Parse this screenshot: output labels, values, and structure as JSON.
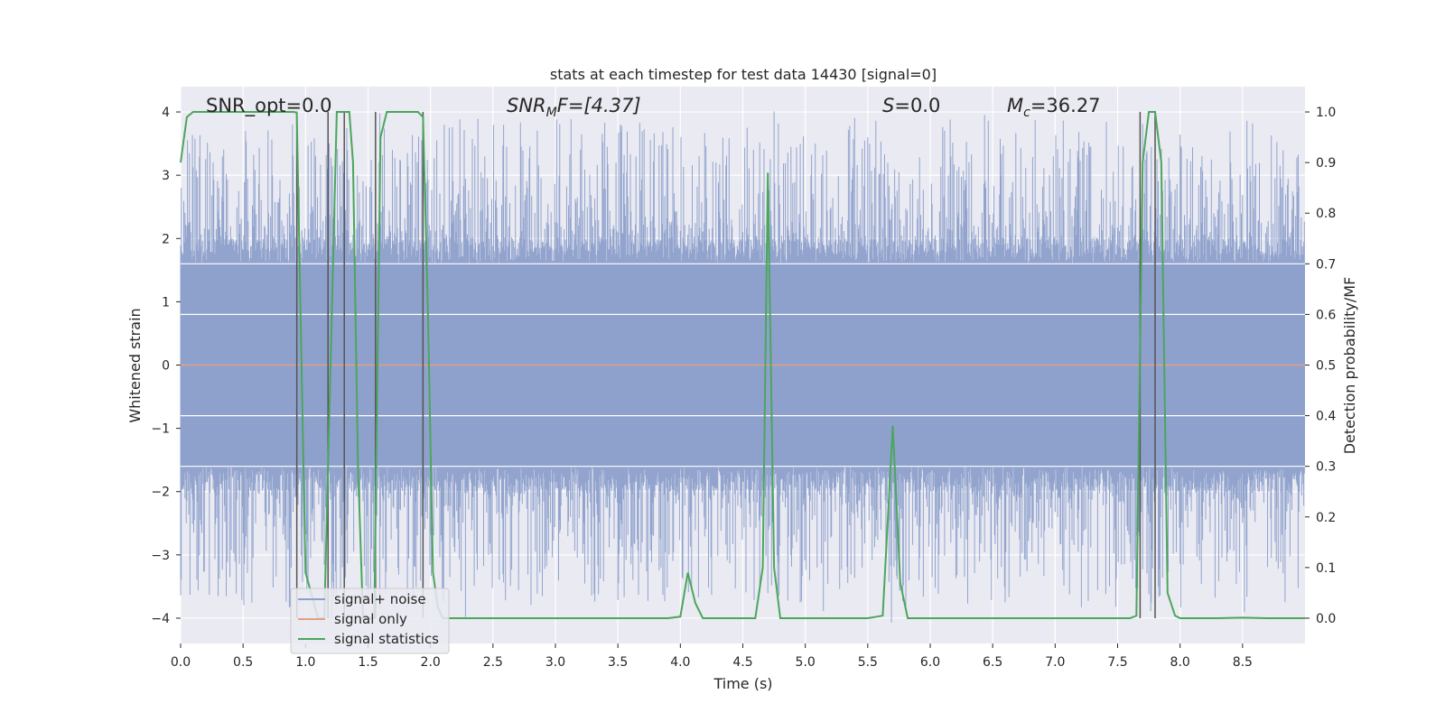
{
  "chart_data": {
    "type": "line",
    "title": "stats at each timestep for test data 14430 [signal=0]",
    "xlabel": "Time (s)",
    "ylabel": "Whitened strain",
    "y2label": "Detection probability/MF",
    "xlim": [
      0.0,
      9.0
    ],
    "ylim": [
      -4.4,
      4.4
    ],
    "y2lim": [
      -0.05,
      1.05
    ],
    "xticks": [
      "0.0",
      "0.5",
      "1.0",
      "1.5",
      "2.0",
      "2.5",
      "3.0",
      "3.5",
      "4.0",
      "4.5",
      "5.0",
      "5.5",
      "6.0",
      "6.5",
      "7.0",
      "7.5",
      "8.0",
      "8.5"
    ],
    "xtick_values": [
      0.0,
      0.5,
      1.0,
      1.5,
      2.0,
      2.5,
      3.0,
      3.5,
      4.0,
      4.5,
      5.0,
      5.5,
      6.0,
      6.5,
      7.0,
      7.5,
      8.0,
      8.5
    ],
    "yticks": [
      "−4",
      "−3",
      "−2",
      "−1",
      "0",
      "1",
      "2",
      "3",
      "4"
    ],
    "ytick_values": [
      -4,
      -3,
      -2,
      -1,
      0,
      1,
      2,
      3,
      4
    ],
    "y2ticks": [
      "0.0",
      "0.1",
      "0.2",
      "0.3",
      "0.4",
      "0.5",
      "0.6",
      "0.7",
      "0.8",
      "0.9",
      "1.0"
    ],
    "y2tick_values": [
      0.0,
      0.1,
      0.2,
      0.3,
      0.4,
      0.5,
      0.6,
      0.7,
      0.8,
      0.9,
      1.0
    ],
    "grid": true,
    "legend_position": "lower-left",
    "annotations": {
      "snr_opt": "SNR_opt=0.0",
      "snr_mf_main": "SNR",
      "snr_mf_sub": "M",
      "snr_mf_rest": "F=[4.37]",
      "s_main": "S",
      "s_rest": "=0.0",
      "mc_main": "M",
      "mc_sub": "c",
      "mc_rest": "=36.27"
    },
    "series": [
      {
        "name": "signal+ noise",
        "color": "#8da0cb",
        "kind": "noise",
        "amplitude_typical": 1.6,
        "amplitude_peak": 3.7
      },
      {
        "name": "signal only",
        "color": "#e1a084",
        "kind": "flat",
        "value": 0.0
      },
      {
        "name": "signal statistics",
        "color": "#4ca65c",
        "axis": "y2",
        "x": [
          0.0,
          0.05,
          0.1,
          0.2,
          0.3,
          0.4,
          0.5,
          0.6,
          0.7,
          0.8,
          0.9,
          0.93,
          0.96,
          1.0,
          1.1,
          1.15,
          1.2,
          1.25,
          1.3,
          1.35,
          1.38,
          1.42,
          1.46,
          1.5,
          1.55,
          1.6,
          1.65,
          1.7,
          1.8,
          1.9,
          1.94,
          1.98,
          2.02,
          2.06,
          2.1,
          2.2,
          2.5,
          3.0,
          3.5,
          3.9,
          4.0,
          4.06,
          4.12,
          4.18,
          4.3,
          4.5,
          4.6,
          4.66,
          4.7,
          4.75,
          4.8,
          4.9,
          5.0,
          5.2,
          5.5,
          5.62,
          5.7,
          5.76,
          5.82,
          6.0,
          6.3,
          6.5,
          6.8,
          7.0,
          7.3,
          7.6,
          7.65,
          7.7,
          7.75,
          7.8,
          7.85,
          7.9,
          7.96,
          8.0,
          8.1,
          8.3,
          8.5,
          8.7,
          9.0
        ],
        "y": [
          0.9,
          0.99,
          1.0,
          1.0,
          1.0,
          1.0,
          1.0,
          1.0,
          1.0,
          1.0,
          1.0,
          0.999,
          0.6,
          0.09,
          0.0,
          0.0,
          0.5,
          1.0,
          1.0,
          1.0,
          0.9,
          0.3,
          0.0,
          0.0,
          0.0,
          0.95,
          1.0,
          1.0,
          1.0,
          1.0,
          0.99,
          0.6,
          0.09,
          0.02,
          0.0,
          0.0,
          0.0,
          0.0,
          0.0,
          0.0,
          0.003,
          0.09,
          0.03,
          0.0,
          0.0,
          0.0,
          0.0,
          0.1,
          0.88,
          0.1,
          0.0,
          0.0,
          0.0,
          0.0,
          0.0,
          0.005,
          0.38,
          0.07,
          0.0,
          0.0,
          0.0,
          0.0,
          0.0,
          0.0,
          0.0,
          0.0,
          0.005,
          0.9,
          1.0,
          1.0,
          0.9,
          0.05,
          0.005,
          0.0,
          0.0,
          0.0,
          0.001,
          0.0,
          0.0
        ]
      }
    ],
    "vertical_markers": [
      0.93,
      1.18,
      1.31,
      1.56,
      1.94,
      7.68,
      7.8
    ]
  }
}
